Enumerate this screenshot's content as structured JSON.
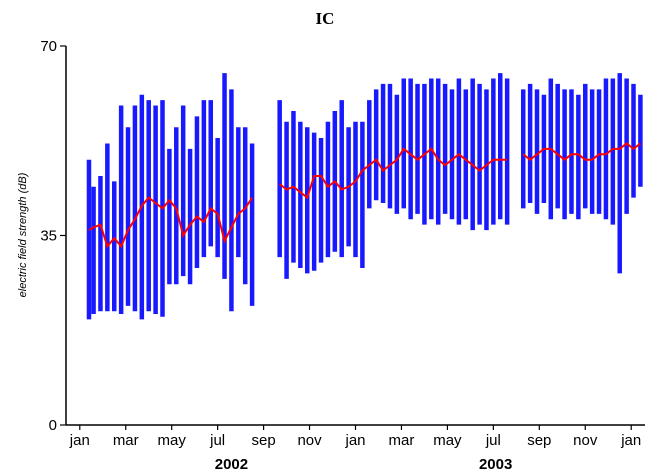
{
  "chart_data": {
    "type": "line",
    "title": "IC",
    "xlabel": "",
    "ylabel": "electric field strength (dB)",
    "ylim": [
      0,
      70
    ],
    "yticks": [
      {
        "value": 0,
        "label": "0"
      },
      {
        "value": 35,
        "label": "35"
      },
      {
        "value": 70,
        "label": "70"
      }
    ],
    "xlim": [
      0,
      25.2
    ],
    "xticks": [
      {
        "month": 0.6,
        "label": "jan"
      },
      {
        "month": 2.6,
        "label": "mar"
      },
      {
        "month": 4.6,
        "label": "may"
      },
      {
        "month": 6.6,
        "label": "jul"
      },
      {
        "month": 8.6,
        "label": "sep"
      },
      {
        "month": 10.6,
        "label": "nov"
      },
      {
        "month": 12.6,
        "label": "jan"
      },
      {
        "month": 14.6,
        "label": "mar"
      },
      {
        "month": 16.6,
        "label": "may"
      },
      {
        "month": 18.6,
        "label": "jul"
      },
      {
        "month": 20.6,
        "label": "sep"
      },
      {
        "month": 22.6,
        "label": "nov"
      },
      {
        "month": 24.6,
        "label": "jan"
      }
    ],
    "year_labels": [
      {
        "month": 7.2,
        "label": "2002"
      },
      {
        "month": 18.7,
        "label": "2003"
      }
    ],
    "grid": false,
    "legend": "none",
    "series": [
      {
        "kind": "range",
        "color": "#0000ff",
        "x": [
          1.0,
          1.2,
          1.5,
          1.8,
          2.1,
          2.4,
          2.7,
          3.0,
          3.3,
          3.6,
          3.9,
          4.2,
          4.5,
          4.8,
          5.1,
          5.4,
          5.7,
          6.0,
          6.3,
          6.6,
          6.9,
          7.2,
          7.5,
          7.8,
          8.1,
          9.3,
          9.6,
          9.9,
          10.2,
          10.5,
          10.8,
          11.1,
          11.4,
          11.7,
          12.0,
          12.3,
          12.6,
          12.9,
          13.2,
          13.5,
          13.8,
          14.1,
          14.4,
          14.7,
          15.0,
          15.3,
          15.6,
          15.9,
          16.2,
          16.5,
          16.8,
          17.1,
          17.4,
          17.7,
          18.0,
          18.3,
          18.6,
          18.9,
          19.2,
          19.9,
          20.2,
          20.5,
          20.8,
          21.1,
          21.4,
          21.7,
          22.0,
          22.3,
          22.6,
          22.9,
          23.2,
          23.5,
          23.8,
          24.1,
          24.4,
          24.7,
          25.0
        ],
        "low": [
          19.5,
          20.5,
          21,
          21,
          21,
          20.5,
          22,
          21,
          19.5,
          21,
          20.5,
          20,
          26,
          26,
          27.5,
          26,
          29,
          31,
          33,
          31,
          27,
          21,
          31,
          26,
          22,
          31,
          27,
          30,
          29,
          28,
          28.5,
          30,
          31,
          32,
          31,
          33,
          31,
          29,
          40,
          41.5,
          41,
          40,
          39,
          40,
          38,
          39,
          37,
          38,
          37,
          39,
          38,
          37,
          38,
          36,
          37,
          36,
          37,
          38,
          37,
          40,
          41,
          39,
          41,
          38,
          40,
          38,
          39,
          38,
          40,
          39,
          39,
          38,
          37,
          28,
          39,
          42,
          44
        ],
        "high": [
          49,
          44,
          46,
          52,
          45,
          59,
          55,
          59,
          61,
          60,
          59,
          60,
          51,
          55,
          59,
          51,
          57,
          60,
          60,
          53,
          65,
          62,
          55,
          55,
          52,
          60,
          56,
          58,
          56,
          55,
          54,
          53,
          56,
          58,
          60,
          55,
          56,
          56,
          60,
          62,
          63,
          63,
          61,
          64,
          64,
          63,
          63,
          64,
          64,
          63,
          62,
          64,
          62,
          64,
          63,
          62,
          64,
          65,
          64,
          62,
          63,
          62,
          61,
          64,
          63,
          62,
          62,
          61,
          63,
          62,
          62,
          64,
          64,
          65,
          64,
          63,
          61
        ]
      },
      {
        "kind": "line",
        "color": "#ff0000",
        "x": [
          1.0,
          1.2,
          1.5,
          1.8,
          2.1,
          2.4,
          2.7,
          3.0,
          3.3,
          3.6,
          3.9,
          4.2,
          4.5,
          4.8,
          5.1,
          5.4,
          5.7,
          6.0,
          6.3,
          6.6,
          6.9,
          7.2,
          7.5,
          7.8,
          8.1,
          9.3,
          9.6,
          9.9,
          10.2,
          10.5,
          10.8,
          11.1,
          11.4,
          11.7,
          12.0,
          12.3,
          12.6,
          12.9,
          13.2,
          13.5,
          13.8,
          14.1,
          14.4,
          14.7,
          15.0,
          15.3,
          15.6,
          15.9,
          16.2,
          16.5,
          16.8,
          17.1,
          17.4,
          17.7,
          18.0,
          18.3,
          18.6,
          18.9,
          19.2,
          19.9,
          20.2,
          20.5,
          20.8,
          21.1,
          21.4,
          21.7,
          22.0,
          22.3,
          22.6,
          22.9,
          23.2,
          23.5,
          23.8,
          24.1,
          24.4,
          24.7,
          25.0
        ],
        "y": [
          36,
          36.5,
          37,
          33,
          34.5,
          33,
          36,
          38,
          40.5,
          42,
          41,
          40,
          41.5,
          40,
          35,
          37,
          38.5,
          37.5,
          40,
          39,
          34,
          36.5,
          39,
          40,
          42,
          44.5,
          43.5,
          44,
          43,
          42,
          46,
          46,
          44,
          45,
          43.5,
          44,
          45,
          47,
          48,
          49,
          47,
          48,
          49,
          51,
          50,
          49,
          50,
          51,
          49,
          48,
          49,
          50,
          49,
          48,
          47,
          48,
          49,
          49,
          49,
          50,
          49,
          50,
          51,
          51,
          50,
          49,
          50,
          50,
          49,
          49,
          50,
          50,
          51,
          51,
          52,
          51,
          52
        ]
      }
    ]
  }
}
